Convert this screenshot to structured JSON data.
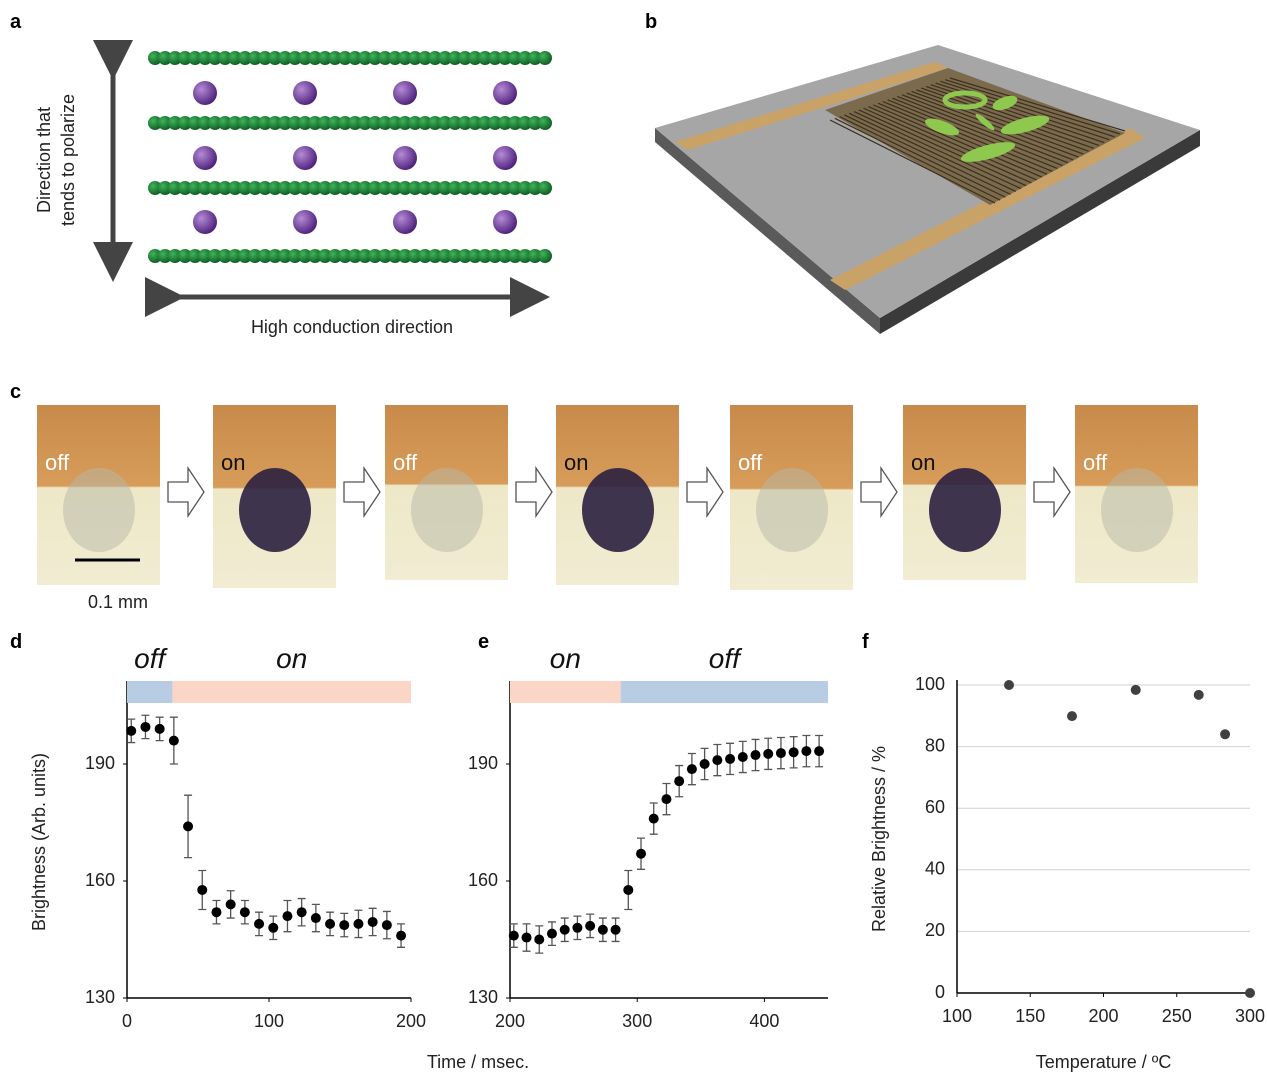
{
  "panel_labels": [
    "a",
    "b",
    "c",
    "d",
    "e",
    "f"
  ],
  "panel_a": {
    "vertical_label": [
      "Direction that",
      "tends to polarize"
    ],
    "horizontal_label": "High conduction direction"
  },
  "panel_c": {
    "frames": [
      "off",
      "on",
      "off",
      "on",
      "off",
      "on",
      "off"
    ],
    "scale_bar": "0.1 mm"
  },
  "chart_data": [
    {
      "type": "scatter",
      "ylabel": "Brightness (Arb. units)",
      "color": "#000000",
      "x": [
        3,
        13,
        23,
        33,
        43,
        53,
        63,
        73,
        83,
        93,
        103,
        113,
        123,
        133,
        143,
        153,
        163,
        173,
        183,
        193
      ],
      "values": [
        198.5,
        199.5,
        199,
        196,
        174,
        157.7,
        152,
        154,
        152,
        149,
        148,
        151,
        152,
        150.5,
        149,
        148.7,
        149,
        149.5,
        148.7,
        146
      ],
      "errors": [
        3,
        3,
        3,
        6,
        8,
        5,
        3,
        3.5,
        3,
        3,
        3,
        4,
        3.5,
        3.5,
        3,
        3,
        3.5,
        3.5,
        3.5,
        3
      ],
      "states": [
        {
          "label": "off",
          "start": 0,
          "end": 32,
          "color": "#b8cce4"
        },
        {
          "label": "on",
          "start": 32,
          "end": 200,
          "color": "#fbd5c5"
        }
      ],
      "xlim": [
        0,
        200
      ],
      "ylim": [
        130,
        210
      ],
      "xticks": [
        0,
        100,
        200
      ],
      "yticks": [
        130,
        160,
        190
      ],
      "grid": false
    },
    {
      "type": "scatter",
      "xlabel": "Time / msec.",
      "color": "#000000",
      "x": [
        203,
        213,
        223,
        233,
        243,
        253,
        263,
        273,
        283,
        293,
        303,
        313,
        323,
        333,
        343,
        353,
        363,
        373,
        383,
        393,
        403,
        413,
        423,
        433,
        443
      ],
      "values": [
        146,
        145.5,
        145,
        146.5,
        147.5,
        148,
        148.5,
        147.5,
        147.5,
        157.7,
        167,
        176,
        181,
        185.6,
        188.7,
        190,
        191,
        191.3,
        191.8,
        192.3,
        192.6,
        192.8,
        193,
        193.3,
        193.3
      ],
      "errors": [
        3,
        3.5,
        3.5,
        3,
        3,
        3,
        3,
        3,
        3,
        5,
        4,
        4,
        4,
        4,
        4,
        4,
        4,
        4,
        4,
        4,
        4,
        4,
        4,
        4,
        4
      ],
      "states": [
        {
          "label": "on",
          "start": 200,
          "end": 287,
          "color": "#fbd5c5"
        },
        {
          "label": "off",
          "start": 287,
          "end": 450,
          "color": "#b8cce4"
        }
      ],
      "xlim": [
        200,
        450
      ],
      "ylim": [
        130,
        210
      ],
      "xticks": [
        200,
        300,
        400
      ],
      "yticks": [
        130,
        160,
        190
      ],
      "grid": false
    },
    {
      "type": "scatter",
      "xlabel": "Temperature / ºC",
      "ylabel": "Relative Brightness / %",
      "color": "#404040",
      "x": [
        135.5,
        178.5,
        222,
        265,
        283,
        300
      ],
      "values": [
        100,
        89.9,
        98.4,
        96.8,
        84,
        0
      ],
      "xlim": [
        100,
        300
      ],
      "ylim": [
        0,
        100
      ],
      "xticks": [
        100,
        150,
        200,
        250,
        300
      ],
      "yticks": [
        0,
        20,
        40,
        60,
        80,
        100
      ],
      "grid": true
    }
  ]
}
